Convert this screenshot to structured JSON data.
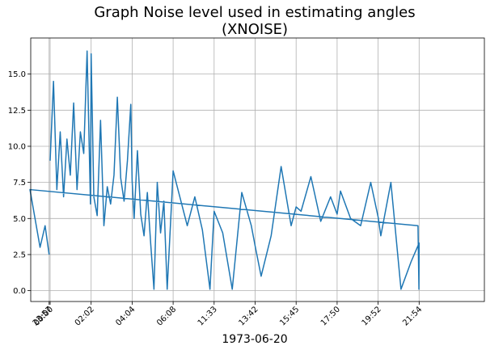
{
  "chart_data": {
    "type": "line",
    "title": "Graph Noise level used in estimating angles",
    "subtitle": "(XNOISE)",
    "xlabel": "1973-06-20",
    "ylabel": "",
    "grid": true,
    "xlim": [
      "23:00",
      "24:38"
    ],
    "ylim": [
      -0.75,
      17.5
    ],
    "x_ticks": [
      "00:00",
      "02:02",
      "04:04",
      "06:08",
      "11:33",
      "13:42",
      "15:45",
      "17:50",
      "19:52",
      "21:54",
      "23:57"
    ],
    "y_ticks": [
      "0.0",
      "2.5",
      "5.0",
      "7.5",
      "10.0",
      "12.5",
      "15.0"
    ],
    "series": [
      {
        "color": "#1f77b4",
        "x": [
          "00:00",
          "00:10",
          "00:20",
          "00:30",
          "00:40",
          "00:50",
          "01:00",
          "01:10",
          "01:20",
          "01:30",
          "01:40",
          "01:50",
          "02:00",
          "02:02",
          "02:10",
          "02:20",
          "02:30",
          "02:40",
          "02:50",
          "03:00",
          "03:10",
          "03:20",
          "03:30",
          "03:40",
          "03:50",
          "04:00",
          "04:04",
          "04:10",
          "04:20",
          "04:30",
          "04:40",
          "04:50",
          "05:00",
          "05:10",
          "05:20",
          "05:30",
          "05:40",
          "05:50",
          "06:00",
          "06:08",
          "08:00",
          "09:00",
          "10:00",
          "11:00",
          "11:33",
          "12:00",
          "12:30",
          "13:00",
          "13:30",
          "13:42",
          "14:00",
          "14:30",
          "15:00",
          "15:30",
          "15:45",
          "16:00",
          "16:30",
          "17:00",
          "17:30",
          "17:50",
          "18:00",
          "18:30",
          "19:00",
          "19:30",
          "19:52",
          "20:00",
          "20:30",
          "21:00",
          "21:30",
          "21:54",
          "22:00",
          "22:30",
          "23:00",
          "23:30",
          "23:45",
          "23:57"
        ],
        "values": [
          9.0,
          14.5,
          7.0,
          11.0,
          6.5,
          10.5,
          8.0,
          13.0,
          7.0,
          11.0,
          9.5,
          16.6,
          6.0,
          16.4,
          6.5,
          5.2,
          11.8,
          4.5,
          7.2,
          6.0,
          8.0,
          13.4,
          7.8,
          6.2,
          9.0,
          12.9,
          7.6,
          5.0,
          9.7,
          5.3,
          3.8,
          6.8,
          3.3,
          0.1,
          7.5,
          4.0,
          6.2,
          0.1,
          4.6,
          8.3,
          4.5,
          6.5,
          4.2,
          0.1,
          5.5,
          4.0,
          0.1,
          6.8,
          4.5,
          3.1,
          1.0,
          3.8,
          8.6,
          4.5,
          5.8,
          5.5,
          7.9,
          4.8,
          6.5,
          5.3,
          6.9,
          5.0,
          4.5,
          7.5,
          5.1,
          3.8,
          7.5,
          0.1,
          2.0,
          3.3,
          0.1,
          4.5,
          7.0,
          3.0,
          4.5,
          2.5
        ]
      }
    ]
  }
}
